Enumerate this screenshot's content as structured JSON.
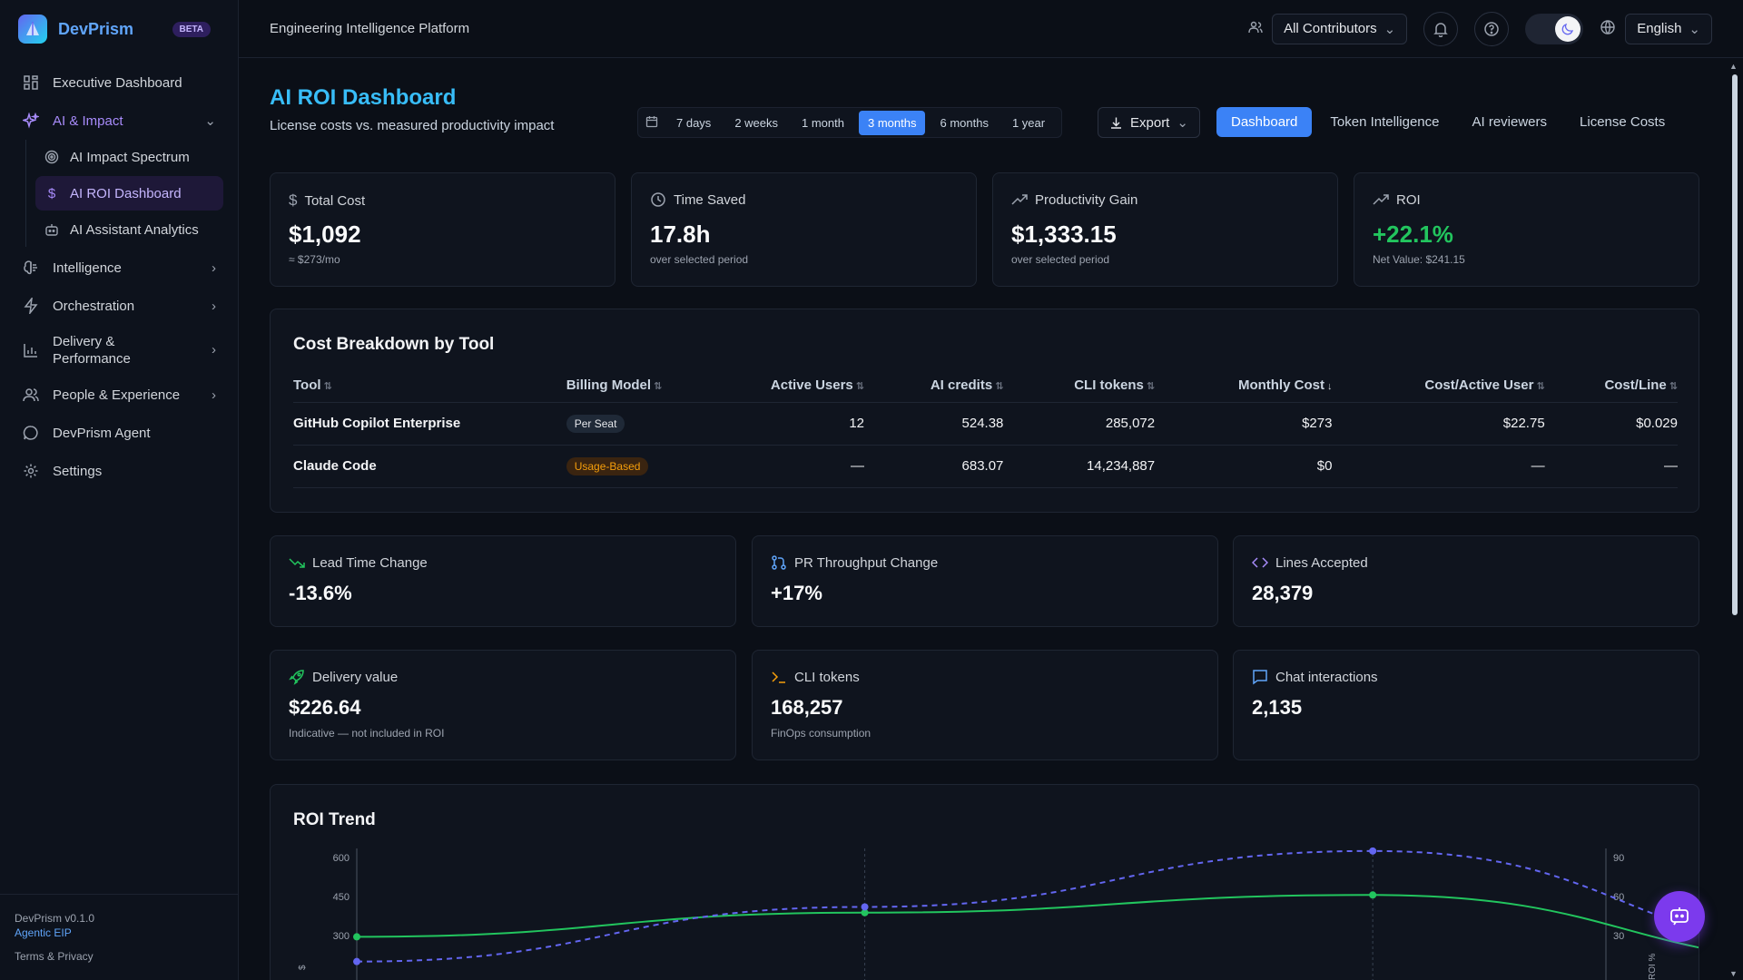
{
  "app": {
    "name": "DevPrism",
    "beta": "BETA",
    "platform": "Engineering Intelligence Platform"
  },
  "topbar": {
    "contributors": "All Contributors",
    "language": "English"
  },
  "sidebar": {
    "items": [
      {
        "label": "Executive Dashboard"
      },
      {
        "label": "AI & Impact"
      },
      {
        "label": "Intelligence"
      },
      {
        "label": "Orchestration"
      },
      {
        "label": "Delivery &",
        "label2": "Performance"
      },
      {
        "label": "People & Experience"
      },
      {
        "label": "DevPrism Agent"
      },
      {
        "label": "Settings"
      }
    ],
    "sub_items": [
      {
        "label": "AI Impact Spectrum"
      },
      {
        "label": "AI ROI Dashboard"
      },
      {
        "label": "AI Assistant Analytics"
      }
    ],
    "footer": {
      "version": "DevPrism v0.1.0",
      "agentic": "Agentic EIP",
      "terms": "Terms & Privacy"
    }
  },
  "page": {
    "title": "AI ROI Dashboard",
    "subtitle": "License costs vs. measured productivity impact",
    "ranges": [
      "7 days",
      "2 weeks",
      "1 month",
      "3 months",
      "6 months",
      "1 year"
    ],
    "active_range": "3 months",
    "export": "Export",
    "tabs": [
      "Dashboard",
      "Token Intelligence",
      "AI reviewers",
      "License Costs"
    ],
    "active_tab": "Dashboard"
  },
  "stats": [
    {
      "label": "Total Cost",
      "value": "$1,092",
      "note": "≈ $273/mo",
      "icon": "dollar-icon"
    },
    {
      "label": "Time Saved",
      "value": "17.8h",
      "note": "over selected period",
      "icon": "clock-icon"
    },
    {
      "label": "Productivity Gain",
      "value": "$1,333.15",
      "note": "over selected period",
      "icon": "trend-up-icon"
    },
    {
      "label": "ROI",
      "value": "+22.1%",
      "note": "Net Value: $241.15",
      "icon": "trend-up-icon"
    }
  ],
  "cost_breakdown": {
    "title": "Cost Breakdown by Tool",
    "headers": [
      "Tool",
      "Billing Model",
      "Active Users",
      "AI credits",
      "CLI tokens",
      "Monthly Cost",
      "Cost/Active User",
      "Cost/Line"
    ],
    "rows": [
      {
        "tool": "GitHub Copilot Enterprise",
        "billing": "Per Seat",
        "users": "12",
        "credits": "524.38",
        "cli": "285,072",
        "monthly": "$273",
        "per_user": "$22.75",
        "per_line": "$0.029"
      },
      {
        "tool": "Claude Code",
        "billing": "Usage-Based",
        "users": "—",
        "credits": "683.07",
        "cli": "14,234,887",
        "monthly": "$0",
        "per_user": "—",
        "per_line": "—"
      }
    ]
  },
  "metrics_row1": [
    {
      "label": "Lead Time Change",
      "value": "-13.6%",
      "icon": "trend-down-icon"
    },
    {
      "label": "PR Throughput Change",
      "value": "+17%",
      "icon": "git-pull-request-icon"
    },
    {
      "label": "Lines Accepted",
      "value": "28,379",
      "icon": "code-icon"
    }
  ],
  "metrics_row2": [
    {
      "label": "Delivery value",
      "value": "$226.64",
      "note": "Indicative — not included in ROI",
      "icon": "rocket-icon"
    },
    {
      "label": "CLI tokens",
      "value": "168,257",
      "note": "FinOps consumption",
      "icon": "terminal-icon"
    },
    {
      "label": "Chat interactions",
      "value": "2,135",
      "note": "",
      "icon": "chat-icon"
    }
  ],
  "roi_trend": {
    "title": "ROI Trend"
  },
  "chart_data": {
    "type": "line",
    "title": "ROI Trend",
    "left_axis": {
      "label": "$",
      "ticks": [
        "600",
        "450",
        "300"
      ],
      "range": [
        300,
        600
      ]
    },
    "right_axis": {
      "label": "ROI %",
      "ticks": [
        "90",
        "60",
        "30"
      ],
      "range": [
        30,
        90
      ]
    },
    "series": [
      {
        "axis": "left",
        "style": "solid",
        "color": "#22c55e",
        "values": [
          295,
          388,
          456,
          190
        ]
      },
      {
        "axis": "right",
        "style": "dashed",
        "color": "#6366f1",
        "values": [
          10,
          52,
          95,
          15
        ]
      }
    ],
    "colors": {
      "green": "#22c55e",
      "purple": "#6366f1"
    }
  }
}
